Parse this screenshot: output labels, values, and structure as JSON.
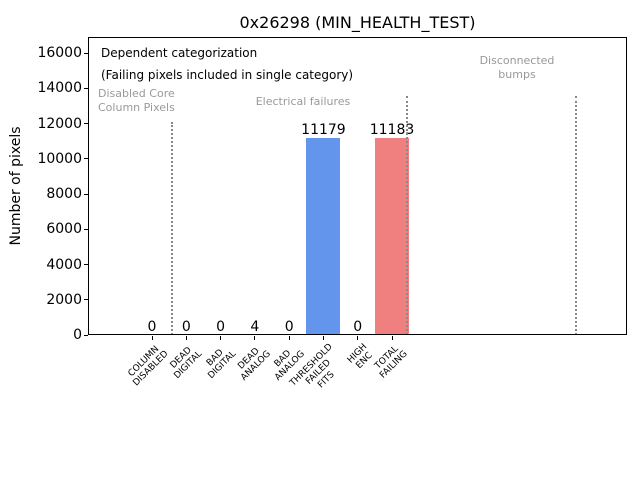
{
  "chart_data": {
    "type": "bar",
    "title": "0x26298 (MIN_HEALTH_TEST)",
    "ylabel": "Number of pixels",
    "xlabel": "",
    "ylim": [
      0,
      16000
    ],
    "yticks": [
      0,
      2000,
      4000,
      6000,
      8000,
      10000,
      12000,
      14000,
      16000
    ],
    "categories": [
      "COLUMN\nDISABLED",
      "DEAD\nDIGITAL",
      "BAD\nDIGITAL",
      "DEAD\nANALOG",
      "BAD\nANALOG",
      "THRESHOLD\nFAILED\nFITS",
      "HIGH\nENC",
      "TOTAL\nFAILING"
    ],
    "values": [
      0,
      0,
      0,
      4,
      0,
      11179,
      0,
      11183
    ],
    "bar_labels": [
      "0",
      "0",
      "0",
      "4",
      "0",
      "11179",
      "0",
      "11183"
    ],
    "bar_colors": [
      "#6495ed",
      "#6495ed",
      "#6495ed",
      "#6495ed",
      "#6495ed",
      "#6495ed",
      "#6495ed",
      "#f08080"
    ],
    "bar_value_color": "#000000",
    "grid": false,
    "legend": null,
    "annotations": [
      {
        "text": "Dependent categorization",
        "color": "#000000",
        "size": 12,
        "align": "left",
        "x": 13,
        "y": 9
      },
      {
        "text": "(Failing pixels included in single category)",
        "color": "#000000",
        "size": 12,
        "align": "left",
        "x": 13,
        "y": 31
      },
      {
        "text": "Disabled Core\nColumn Pixels",
        "color": "#999999",
        "size": 11,
        "align": "left",
        "x": 10,
        "y": 50
      },
      {
        "text": "Electrical failures",
        "color": "#999999",
        "size": 11,
        "align": "center",
        "x": 215,
        "y": 58
      },
      {
        "text": "Disconnected\nbumps",
        "color": "#999999",
        "size": 11,
        "align": "center",
        "x": 429,
        "y": 17
      }
    ],
    "region_separators": {
      "style": "dotted",
      "color": "#888888",
      "lines": [
        {
          "x": 84,
          "y_top": 85
        },
        {
          "x": 319,
          "y_top": 59
        },
        {
          "x": 488,
          "y_top": 59
        }
      ]
    }
  }
}
